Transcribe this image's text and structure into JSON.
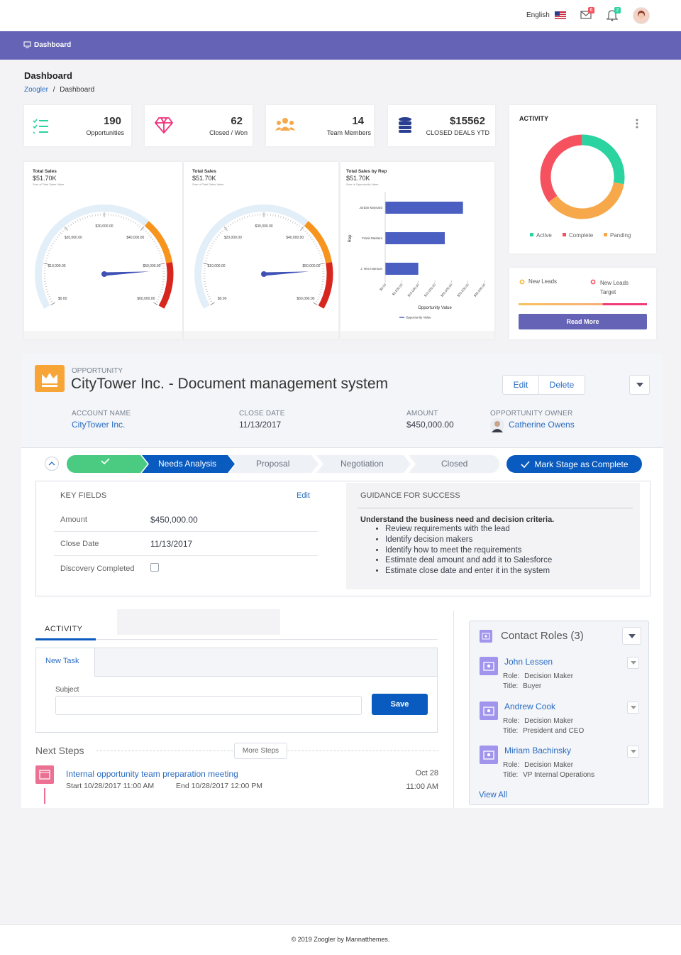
{
  "header": {
    "language": "English",
    "mail_badge": 6,
    "notification_badge": 2
  },
  "nav": {
    "item": "Dashboard"
  },
  "page": {
    "title": "Dashboard",
    "breadcrumb": [
      "Zoogler",
      "Dashboard"
    ]
  },
  "stats": [
    {
      "value": 190,
      "label": "Opportunities"
    },
    {
      "value": 62,
      "label": "Closed / Won"
    },
    {
      "value": 14,
      "label": "Team Members"
    },
    {
      "value": "$15562",
      "label": "CLOSED DEALS YTD"
    }
  ],
  "activity_chart": {
    "type": "donut",
    "title": "ACTIVITY",
    "series": [
      {
        "name": "Active",
        "color": "#2bd3a0",
        "value": 28
      },
      {
        "name": "Complete",
        "color": "#f5515f",
        "value": 35
      },
      {
        "name": "Panding",
        "color": "#f7a84a",
        "value": 37
      }
    ]
  },
  "leads": {
    "items": [
      {
        "label": "New Leads",
        "color": "#f7b731"
      },
      {
        "label": "New Leads Target",
        "color": "#f5515f"
      }
    ],
    "button": "Read More"
  },
  "gauges": [
    {
      "type": "gauge",
      "title": "Total Sales",
      "value_label": "$51.70K",
      "subtitle": "Sum of Total Sales Value",
      "value": 51700,
      "range": [
        0,
        60000
      ],
      "ticks": [
        {
          "value": 0,
          "label": "$0.00"
        },
        {
          "value": 10000,
          "label": "$10,000.00"
        },
        {
          "value": 20000,
          "label": "$20,000.00"
        },
        {
          "value": 30000,
          "label": "$30,000.00"
        },
        {
          "value": 40000,
          "label": "$40,000.00"
        },
        {
          "value": 50000,
          "label": "$50,000.00"
        },
        {
          "value": 60000,
          "label": "$60,000.00"
        }
      ],
      "bands": [
        {
          "from": 0,
          "to": 40000,
          "color": "#e2eef8"
        },
        {
          "from": 40000,
          "to": 50000,
          "color": "#f7941d"
        },
        {
          "from": 50000,
          "to": 60000,
          "color": "#d7261e"
        }
      ]
    },
    {
      "type": "gauge",
      "title": "Total Sales",
      "value_label": "$51.70K",
      "subtitle": "Sum of Total Sales Value",
      "value": 51700,
      "range": [
        0,
        60000
      ],
      "ticks": [
        {
          "value": 0,
          "label": "$0.00"
        },
        {
          "value": 10000,
          "label": "$10,000.00"
        },
        {
          "value": 20000,
          "label": "$20,000.00"
        },
        {
          "value": 30000,
          "label": "$30,000.00"
        },
        {
          "value": 40000,
          "label": "$40,000.00"
        },
        {
          "value": 50000,
          "label": "$50,000.00"
        },
        {
          "value": 60000,
          "label": "$60,000.00"
        }
      ],
      "bands": [
        {
          "from": 0,
          "to": 40000,
          "color": "#e2eef8"
        },
        {
          "from": 40000,
          "to": 50000,
          "color": "#f7941d"
        },
        {
          "from": 50000,
          "to": 60000,
          "color": "#d7261e"
        }
      ]
    }
  ],
  "rep_chart": {
    "type": "bar",
    "title": "Total Sales by Rep",
    "value_label": "$51.70K",
    "subtitle": "Sum of Opportunity Value",
    "y_label": "Rep",
    "x_label": "Opportunity Value",
    "legend": "Opportunity Value",
    "color": "#4a5fc1",
    "categories": [
      "Jordan Maynard",
      "Frank Masters",
      "J. Rex Hamson"
    ],
    "values": [
      23500,
      18000,
      10000
    ],
    "xlim": [
      0,
      30000
    ],
    "xticks": [
      {
        "value": 0,
        "label": "$0.00"
      },
      {
        "value": 5000,
        "label": "$5,000.00"
      },
      {
        "value": 10000,
        "label": "$10,000.00"
      },
      {
        "value": 15000,
        "label": "$15,000.00"
      },
      {
        "value": 20000,
        "label": "$20,000.00"
      },
      {
        "value": 25000,
        "label": "$25,000.00"
      },
      {
        "value": 30000,
        "label": "$30,000.00"
      }
    ]
  },
  "opportunity": {
    "label": "OPPORTUNITY",
    "title": "CityTower Inc. - Document management system",
    "actions": [
      "Edit",
      "Delete"
    ],
    "fields": [
      {
        "label": "ACCOUNT NAME",
        "value": "CityTower Inc."
      },
      {
        "label": "CLOSE DATE",
        "value": "11/13/2017"
      },
      {
        "label": "AMOUNT",
        "value": "$450,000.00"
      },
      {
        "label": "OPPORTUNITY OWNER",
        "value": "Catherine Owens"
      }
    ]
  },
  "path": {
    "stages": [
      "Needs Analysis",
      "Proposal",
      "Negotiation",
      "Closed"
    ],
    "button": "Mark Stage as Complete"
  },
  "key_fields": {
    "title": "KEY FIELDS",
    "edit": "Edit",
    "rows": [
      {
        "label": "Amount",
        "value": "$450,000.00"
      },
      {
        "label": "Close Date",
        "value": "11/13/2017"
      },
      {
        "label": "Discovery Completed"
      }
    ]
  },
  "guidance": {
    "title": "GUIDANCE FOR SUCCESS",
    "heading": "Understand the business need and decision criteria.",
    "bullets": [
      "Review requirements with the lead",
      "Identify decision makers",
      "Identify how to meet the requirements",
      "Estimate deal amount and add it to Salesforce",
      "Estimate close date and enter it in the system"
    ]
  },
  "activity": {
    "tab": "ACTIVITY",
    "task_tab": "New Task",
    "subject_label": "Subject",
    "save": "Save",
    "next_steps": "Next Steps",
    "more_steps": "More Steps",
    "event": {
      "title": "Internal opportunity team preparation meeting",
      "start": "Start 10/28/2017 11:00 AM",
      "end": "End 10/28/2017 12:00 PM",
      "date": "Oct 28",
      "time": "11:00 AM"
    }
  },
  "contact_roles": {
    "title": "Contact Roles (3)",
    "role_label": "Role:",
    "title_label": "Title:",
    "view_all": "View All",
    "contacts": [
      {
        "name": "John Lessen",
        "role": "Decision Maker",
        "title": "Buyer"
      },
      {
        "name": "Andrew Cook",
        "role": "Decision Maker",
        "title": "President and CEO"
      },
      {
        "name": "Miriam Bachinsky",
        "role": "Decision Maker",
        "title": "VP Internal Operations"
      }
    ]
  },
  "footer": "© 2019 Zoogler by Mannatthemes."
}
